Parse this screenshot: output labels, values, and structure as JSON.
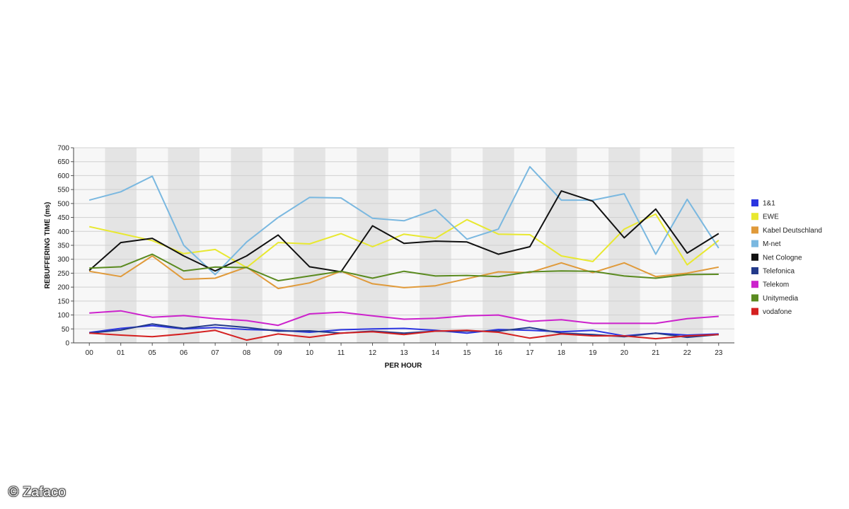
{
  "chart_data": {
    "type": "line",
    "title": "",
    "xlabel": "PER HOUR",
    "ylabel": "REBUFFERING TIME (ms)",
    "ylim": [
      0,
      700
    ],
    "yticks": [
      0,
      50,
      100,
      150,
      200,
      250,
      300,
      350,
      400,
      450,
      500,
      550,
      600,
      650,
      700
    ],
    "categories": [
      "00",
      "01",
      "05",
      "06",
      "07",
      "08",
      "09",
      "10",
      "11",
      "12",
      "13",
      "14",
      "15",
      "16",
      "17",
      "18",
      "19",
      "20",
      "21",
      "22",
      "23"
    ],
    "legend_position": "right",
    "series": [
      {
        "name": "1&1",
        "color": "#2b35e0",
        "values": [
          37,
          52,
          62,
          50,
          55,
          48,
          45,
          38,
          47,
          50,
          52,
          45,
          35,
          48,
          45,
          40,
          45,
          25,
          35,
          28,
          32
        ]
      },
      {
        "name": "EWE",
        "color": "#e8e830",
        "values": [
          417,
          392,
          367,
          320,
          335,
          270,
          360,
          355,
          392,
          345,
          390,
          375,
          442,
          390,
          388,
          312,
          292,
          408,
          462,
          280,
          368
        ]
      },
      {
        "name": "Kabel Deutschland",
        "color": "#e09a3a",
        "values": [
          257,
          238,
          312,
          228,
          232,
          272,
          195,
          215,
          257,
          212,
          198,
          205,
          230,
          255,
          252,
          287,
          252,
          287,
          238,
          250,
          272
        ]
      },
      {
        "name": "M-net",
        "color": "#7ab8e0",
        "values": [
          512,
          542,
          598,
          350,
          245,
          362,
          450,
          522,
          520,
          447,
          438,
          478,
          372,
          408,
          632,
          512,
          512,
          535,
          318,
          515,
          340
        ]
      },
      {
        "name": "Net Cologne",
        "color": "#111111",
        "values": [
          260,
          360,
          375,
          312,
          258,
          312,
          387,
          273,
          255,
          420,
          357,
          365,
          362,
          318,
          345,
          545,
          508,
          377,
          480,
          322,
          392
        ]
      },
      {
        "name": "Telefonica",
        "color": "#233a8a",
        "values": [
          35,
          46,
          68,
          52,
          65,
          55,
          42,
          43,
          35,
          42,
          35,
          42,
          42,
          42,
          55,
          35,
          30,
          22,
          35,
          20,
          30
        ]
      },
      {
        "name": "Telekom",
        "color": "#cc22cc",
        "values": [
          107,
          115,
          92,
          98,
          87,
          80,
          63,
          104,
          110,
          97,
          85,
          88,
          97,
          100,
          77,
          83,
          70,
          70,
          70,
          87,
          95
        ]
      },
      {
        "name": "Unitymedia",
        "color": "#5a8a1f",
        "values": [
          268,
          273,
          318,
          258,
          272,
          270,
          223,
          240,
          257,
          232,
          257,
          240,
          242,
          238,
          255,
          258,
          257,
          240,
          232,
          245,
          246
        ]
      },
      {
        "name": "vodafone",
        "color": "#d42020",
        "values": [
          35,
          28,
          22,
          32,
          45,
          10,
          32,
          20,
          35,
          40,
          30,
          42,
          45,
          38,
          17,
          32,
          25,
          25,
          15,
          25,
          30
        ]
      }
    ]
  },
  "watermark": "© Zafaco"
}
